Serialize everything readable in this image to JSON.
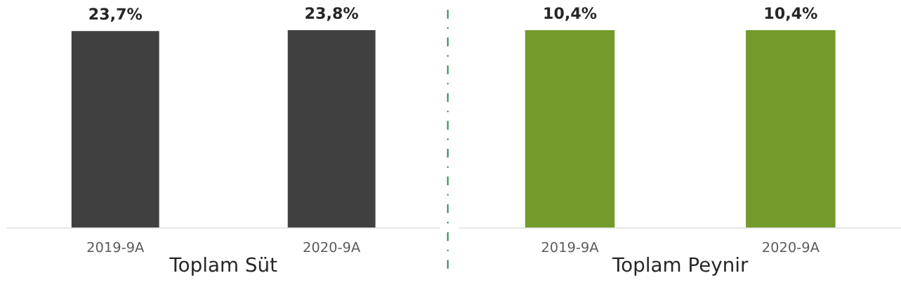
{
  "chart_data": [
    {
      "type": "bar",
      "xlabel": "Toplam Süt",
      "categories": [
        "2019-9A",
        "2020-9A"
      ],
      "values": [
        23.7,
        23.8
      ],
      "value_labels": [
        "23,7%",
        "23,8%"
      ],
      "color": "#404040",
      "tick_labels": "x",
      "grid": false,
      "legend": false
    },
    {
      "type": "bar",
      "xlabel": "Toplam Peynir",
      "categories": [
        "2019-9A",
        "2020-9A"
      ],
      "values": [
        10.4,
        10.4
      ],
      "value_labels": [
        "10,4%",
        "10,4%"
      ],
      "color": "#739a2b",
      "tick_labels": "x",
      "grid": false,
      "legend": false
    }
  ]
}
